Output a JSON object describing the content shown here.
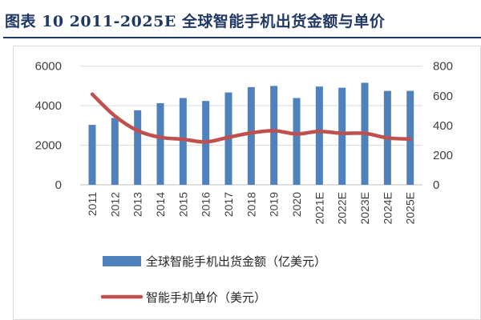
{
  "header": {
    "title": "图表 10   2011-2025E 全球智能手机出货金额与单价"
  },
  "chart_data": {
    "type": "bar+line",
    "title": "",
    "categories": [
      "2011",
      "2012",
      "2013",
      "2014",
      "2015",
      "2016",
      "2017",
      "2018",
      "2019",
      "2020",
      "2021E",
      "2022E",
      "2023E",
      "2024E",
      "2025E"
    ],
    "series": [
      {
        "name": "全球智能手机出货金额（亿美元）",
        "type": "bar",
        "axis": "left",
        "color": "#4f81bd",
        "values": [
          3030,
          3380,
          3770,
          4130,
          4390,
          4240,
          4670,
          4940,
          5000,
          4390,
          4970,
          4910,
          5160,
          4750,
          4750
        ]
      },
      {
        "name": "智能手机单价（美元）",
        "type": "line",
        "axis": "right",
        "color": "#c0504d",
        "values": [
          611,
          464,
          365,
          320,
          307,
          289,
          320,
          350,
          365,
          343,
          360,
          347,
          347,
          316,
          309
        ]
      }
    ],
    "left_axis": {
      "ylim": [
        0,
        6000
      ],
      "ticks": [
        "0",
        "2000",
        "4000",
        "6000"
      ]
    },
    "right_axis": {
      "ylim": [
        0,
        800
      ],
      "ticks": [
        "0",
        "200",
        "400",
        "600",
        "800"
      ]
    },
    "grid": true,
    "legend_position": "bottom"
  }
}
